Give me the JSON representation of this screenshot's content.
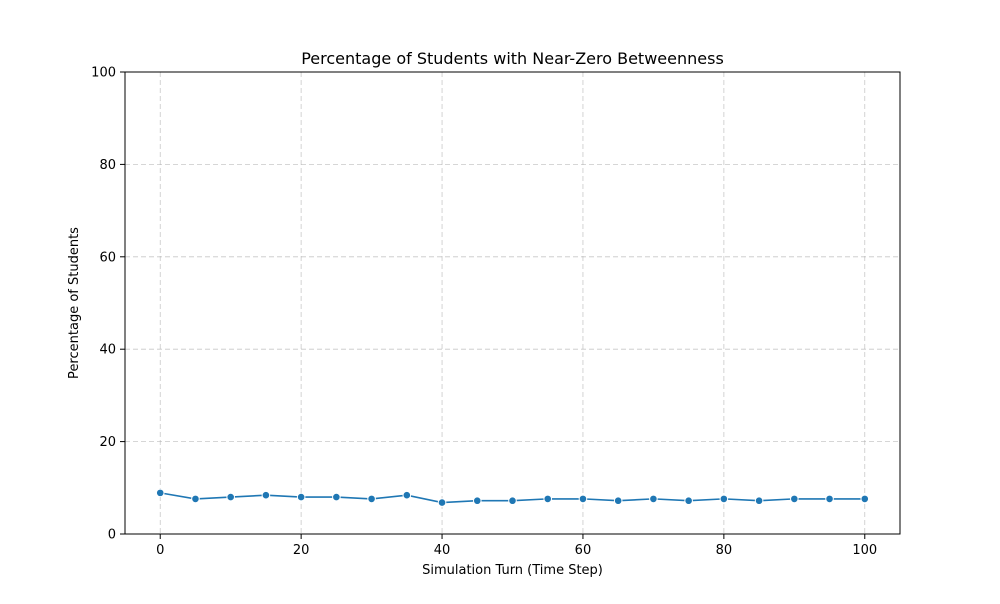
{
  "chart_data": {
    "type": "line",
    "title": "Percentage of Students with Near-Zero Betweenness",
    "xlabel": "Simulation Turn (Time Step)",
    "ylabel": "Percentage of Students",
    "xlim": [
      -5,
      105
    ],
    "ylim": [
      0,
      100
    ],
    "xticks": [
      0,
      20,
      40,
      60,
      80,
      100
    ],
    "yticks": [
      0,
      20,
      40,
      60,
      80,
      100
    ],
    "grid": true,
    "legend": "none",
    "series": [
      {
        "color": "#1f77b4",
        "marker": "circle",
        "x": [
          0,
          5,
          10,
          15,
          20,
          25,
          30,
          35,
          40,
          45,
          50,
          55,
          60,
          65,
          70,
          75,
          80,
          85,
          90,
          95,
          100
        ],
        "y": [
          8.9,
          7.6,
          8.0,
          8.4,
          8.0,
          8.0,
          7.6,
          8.4,
          6.8,
          7.2,
          7.2,
          7.6,
          7.6,
          7.2,
          7.6,
          7.2,
          7.6,
          7.2,
          7.6,
          7.6,
          7.6
        ]
      }
    ]
  }
}
